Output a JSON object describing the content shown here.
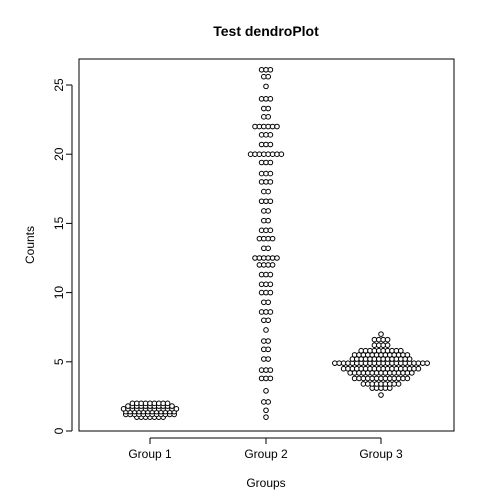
{
  "chart_data": {
    "type": "scatter",
    "style": "beeswarm",
    "title": "Test dendroPlot",
    "xlabel": "Groups",
    "ylabel": "Counts",
    "categories": [
      "Group 1",
      "Group 2",
      "Group 3"
    ],
    "ylim": [
      0,
      27
    ],
    "yticks": [
      0,
      5,
      10,
      15,
      20,
      25
    ],
    "grid": false,
    "legend": "none",
    "colors": {
      "point_fill": "#ffffff",
      "point_stroke": "#000000",
      "axis": "#000000"
    },
    "groups": [
      {
        "name": "Group 1",
        "bins": [
          {
            "y": 1.0,
            "count": 7
          },
          {
            "y": 1.2,
            "count": 12
          },
          {
            "y": 1.4,
            "count": 12
          },
          {
            "y": 1.6,
            "count": 13
          },
          {
            "y": 1.8,
            "count": 11
          },
          {
            "y": 2.0,
            "count": 9
          }
        ]
      },
      {
        "name": "Group 2",
        "bins": [
          {
            "y": 1.0,
            "count": 1
          },
          {
            "y": 1.5,
            "count": 1
          },
          {
            "y": 2.1,
            "count": 2
          },
          {
            "y": 2.9,
            "count": 1
          },
          {
            "y": 3.8,
            "count": 3
          },
          {
            "y": 4.4,
            "count": 3
          },
          {
            "y": 5.2,
            "count": 2
          },
          {
            "y": 5.9,
            "count": 2
          },
          {
            "y": 6.5,
            "count": 2
          },
          {
            "y": 7.3,
            "count": 1
          },
          {
            "y": 8.0,
            "count": 2
          },
          {
            "y": 8.6,
            "count": 3
          },
          {
            "y": 9.3,
            "count": 2
          },
          {
            "y": 10.0,
            "count": 3
          },
          {
            "y": 10.6,
            "count": 3
          },
          {
            "y": 11.3,
            "count": 3
          },
          {
            "y": 12.0,
            "count": 4
          },
          {
            "y": 12.5,
            "count": 6
          },
          {
            "y": 13.2,
            "count": 2
          },
          {
            "y": 13.9,
            "count": 4
          },
          {
            "y": 14.5,
            "count": 3
          },
          {
            "y": 15.2,
            "count": 2
          },
          {
            "y": 15.9,
            "count": 2
          },
          {
            "y": 16.6,
            "count": 3
          },
          {
            "y": 17.3,
            "count": 2
          },
          {
            "y": 18.0,
            "count": 3
          },
          {
            "y": 18.6,
            "count": 3
          },
          {
            "y": 19.4,
            "count": 3
          },
          {
            "y": 20.0,
            "count": 8
          },
          {
            "y": 20.7,
            "count": 3
          },
          {
            "y": 21.4,
            "count": 3
          },
          {
            "y": 22.0,
            "count": 6
          },
          {
            "y": 22.7,
            "count": 2
          },
          {
            "y": 23.3,
            "count": 2
          },
          {
            "y": 24.0,
            "count": 3
          },
          {
            "y": 24.9,
            "count": 1
          },
          {
            "y": 25.6,
            "count": 2
          },
          {
            "y": 26.1,
            "count": 3
          }
        ]
      },
      {
        "name": "Group 3",
        "bins": [
          {
            "y": 2.6,
            "count": 1
          },
          {
            "y": 3.1,
            "count": 5
          },
          {
            "y": 3.4,
            "count": 9
          },
          {
            "y": 3.8,
            "count": 13
          },
          {
            "y": 4.2,
            "count": 15
          },
          {
            "y": 4.5,
            "count": 18
          },
          {
            "y": 4.9,
            "count": 22
          },
          {
            "y": 5.2,
            "count": 14
          },
          {
            "y": 5.5,
            "count": 13
          },
          {
            "y": 5.8,
            "count": 10
          },
          {
            "y": 6.2,
            "count": 4
          },
          {
            "y": 6.6,
            "count": 4
          },
          {
            "y": 7.0,
            "count": 1
          }
        ]
      }
    ]
  }
}
